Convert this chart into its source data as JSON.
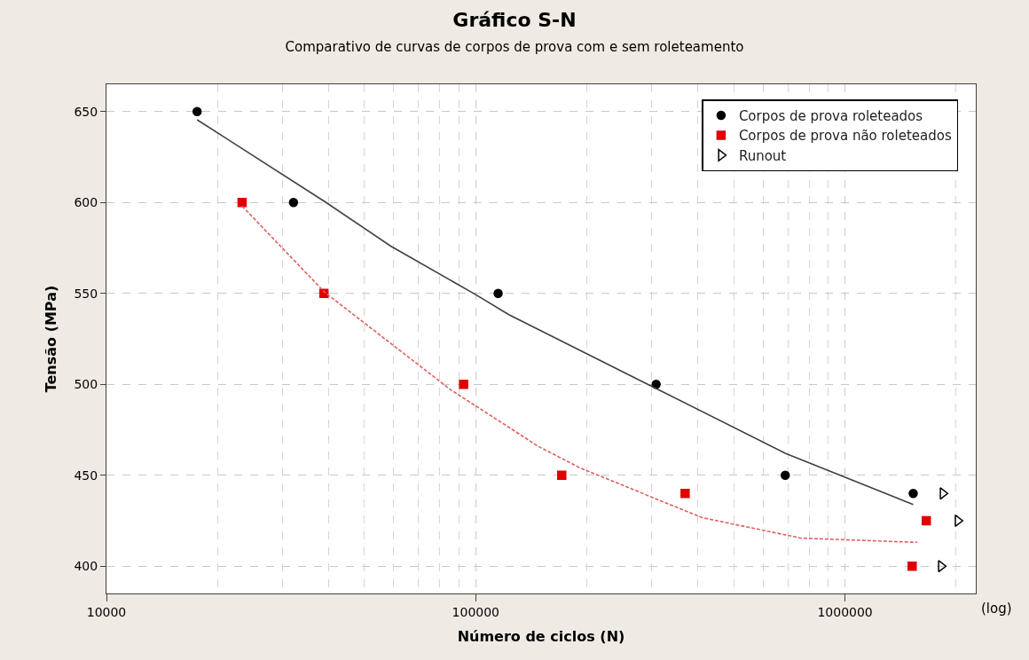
{
  "chart_data": {
    "type": "scatter",
    "title": "Gráfico S-N",
    "subtitle": "Comparativo de curvas de corpos de prova com e sem roleteamento",
    "xlabel": "Número de ciclos (N)",
    "ylabel": "Tensão (MPa)",
    "log": "x",
    "xlim": [
      10000,
      2260000
    ],
    "xticks": [
      10000,
      100000,
      1000000
    ],
    "ylim": [
      385,
      665
    ],
    "yticks": [
      400,
      450,
      500,
      550,
      600,
      650
    ],
    "grid": true,
    "legend": "top right",
    "annotations": [
      "(log)"
    ],
    "series": [
      {
        "name": "Corpos de prova roleteados",
        "color": "#000000",
        "marker": "circle",
        "x": [
          17600,
          32100,
          115000,
          308000,
          689000,
          1530000
        ],
        "values": [
          650,
          600,
          550,
          500,
          450,
          440
        ]
      },
      {
        "name": "Corpos de prova não roleteados",
        "color": "#e00000",
        "marker": "square",
        "x": [
          23300,
          38800,
          92700,
          171000,
          369000,
          1660000,
          1520000
        ],
        "values": [
          600,
          550,
          500,
          450,
          440,
          425,
          400
        ]
      },
      {
        "name": "Runout",
        "color": "#000000",
        "marker": "triangle",
        "x": [
          1840000,
          2020000,
          1820000
        ],
        "values": [
          440,
          425,
          400
        ]
      },
      {
        "type": "line",
        "color": "#404040",
        "line_style": "solid",
        "x": [
          17600,
          39000,
          58900,
          100000,
          123000,
          308000,
          689000,
          1530000
        ],
        "values": [
          645.5,
          600.5,
          576.0,
          549.3,
          538.3,
          497.7,
          462.1,
          433.9
        ]
      },
      {
        "type": "line",
        "color": "#e06060",
        "line_style": "dashed",
        "x": [
          23300,
          39000,
          85700,
          148000,
          191000,
          410000,
          762000,
          1570000
        ],
        "values": [
          598,
          550.6,
          496.9,
          465.8,
          454.2,
          426.7,
          415.4,
          413.1
        ]
      }
    ]
  }
}
